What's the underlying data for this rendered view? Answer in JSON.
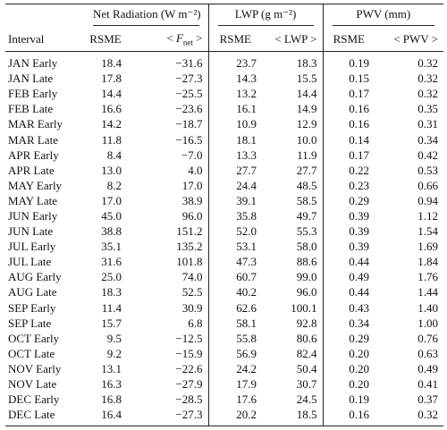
{
  "table": {
    "groups": [
      "Net Radiation (W m⁻²)",
      "LWP (g m⁻²)",
      "PWV (mm)"
    ],
    "columns": [
      {
        "text": "Interval"
      },
      {
        "text": "RSME"
      },
      {
        "pre": "<",
        "var": "F",
        "sub": "net",
        "post": ">"
      },
      {
        "text": "RSME"
      },
      {
        "text": "< LWP >"
      },
      {
        "text": "RSME"
      },
      {
        "text": "< PWV >"
      }
    ],
    "rows": [
      [
        "JAN Early",
        "18.4",
        "−31.6",
        "23.7",
        "18.3",
        "0.19",
        "0.32"
      ],
      [
        "JAN Late",
        "17.8",
        "−27.3",
        "14.3",
        "15.5",
        "0.15",
        "0.32"
      ],
      [
        "FEB Early",
        "14.4",
        "−25.5",
        "13.2",
        "14.4",
        "0.17",
        "0.32"
      ],
      [
        "FEB Late",
        "16.6",
        "−23.6",
        "16.1",
        "14.9",
        "0.16",
        "0.35"
      ],
      [
        "MAR Early",
        "14.2",
        "−18.7",
        "10.9",
        "12.9",
        "0.16",
        "0.31"
      ],
      [
        "MAR Late",
        "11.8",
        "−16.5",
        "18.1",
        "10.0",
        "0.14",
        "0.34"
      ],
      [
        "APR Early",
        "8.4",
        "−7.0",
        "13.3",
        "11.9",
        "0.17",
        "0.42"
      ],
      [
        "APR Late",
        "13.0",
        "4.0",
        "27.7",
        "27.7",
        "0.22",
        "0.53"
      ],
      [
        "MAY Early",
        "8.2",
        "17.0",
        "24.4",
        "48.5",
        "0.23",
        "0.66"
      ],
      [
        "MAY Late",
        "17.0",
        "38.9",
        "39.1",
        "58.5",
        "0.29",
        "0.94"
      ],
      [
        "JUN Early",
        "45.0",
        "96.0",
        "35.8",
        "49.7",
        "0.39",
        "1.12"
      ],
      [
        "JUN Late",
        "38.8",
        "151.2",
        "52.0",
        "55.3",
        "0.39",
        "1.54"
      ],
      [
        "JUL Early",
        "35.1",
        "135.2",
        "53.1",
        "58.0",
        "0.39",
        "1.69"
      ],
      [
        "JUL Late",
        "31.6",
        "101.8",
        "47.3",
        "88.6",
        "0.44",
        "1.84"
      ],
      [
        "AUG Early",
        "25.0",
        "74.0",
        "60.7",
        "99.0",
        "0.49",
        "1.76"
      ],
      [
        "AUG Late",
        "18.3",
        "52.5",
        "40.2",
        "96.0",
        "0.44",
        "1.44"
      ],
      [
        "SEP Early",
        "11.4",
        "30.9",
        "62.6",
        "100.1",
        "0.43",
        "1.40"
      ],
      [
        "SEP Late",
        "15.7",
        "6.8",
        "58.1",
        "92.8",
        "0.34",
        "1.00"
      ],
      [
        "OCT Early",
        "9.5",
        "−12.5",
        "55.8",
        "80.6",
        "0.29",
        "0.76"
      ],
      [
        "OCT Late",
        "9.2",
        "−15.9",
        "56.9",
        "82.4",
        "0.20",
        "0.63"
      ],
      [
        "NOV Early",
        "13.1",
        "−22.6",
        "24.2",
        "50.4",
        "0.20",
        "0.49"
      ],
      [
        "NOV Late",
        "16.3",
        "−27.9",
        "17.9",
        "30.7",
        "0.20",
        "0.41"
      ],
      [
        "DEC Early",
        "16.8",
        "−28.5",
        "17.6",
        "24.5",
        "0.19",
        "0.37"
      ],
      [
        "DEC Late",
        "16.4",
        "−27.3",
        "20.2",
        "18.5",
        "0.16",
        "0.32"
      ]
    ]
  }
}
